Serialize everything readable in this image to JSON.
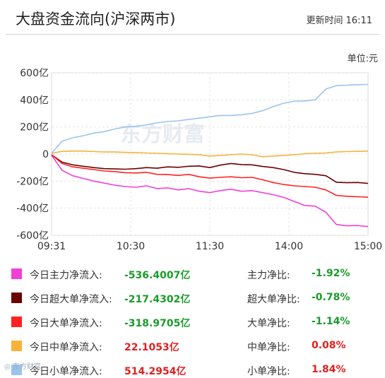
{
  "header": {
    "title": "大盘资金流向(沪深两市)",
    "update_label": "更新时间",
    "update_time": "16:11"
  },
  "unit_label": "单位:元",
  "watermark": "东方财富",
  "corner_mark": "◎ 东方财富",
  "chart_data": {
    "type": "line",
    "x_ticks": [
      "09:31",
      "10:30",
      "11:30",
      "14:00",
      "15:00"
    ],
    "y_ticks": [
      "600亿",
      "400亿",
      "200亿",
      "0",
      "-200亿",
      "-400亿",
      "-600亿"
    ],
    "y_tick_values": [
      600,
      400,
      200,
      0,
      -200,
      -400,
      -600
    ],
    "ylim": [
      -600,
      600
    ],
    "y_unit": "亿",
    "grid": true,
    "series": [
      {
        "name": "今日主力净流入",
        "color": "#f23fd6",
        "values": [
          -10,
          -120,
          -160,
          -180,
          -200,
          -215,
          -230,
          -240,
          -245,
          -235,
          -255,
          -250,
          -265,
          -255,
          -275,
          -285,
          -270,
          -260,
          -275,
          -270,
          -285,
          -300,
          -320,
          -350,
          -380,
          -385,
          -430,
          -520,
          -530,
          -528,
          -536
        ]
      },
      {
        "name": "今日超大单净流入",
        "color": "#6b0000",
        "values": [
          -5,
          -60,
          -80,
          -90,
          -100,
          -108,
          -110,
          -112,
          -108,
          -100,
          -105,
          -95,
          -98,
          -90,
          -88,
          -100,
          -82,
          -70,
          -78,
          -80,
          -92,
          -100,
          -115,
          -135,
          -145,
          -150,
          -160,
          -208,
          -212,
          -210,
          -217
        ]
      },
      {
        "name": "今日大单净流入",
        "color": "#ff2222",
        "values": [
          -5,
          -70,
          -95,
          -105,
          -115,
          -125,
          -130,
          -138,
          -140,
          -135,
          -150,
          -152,
          -158,
          -150,
          -168,
          -178,
          -172,
          -168,
          -175,
          -172,
          -190,
          -210,
          -225,
          -235,
          -240,
          -245,
          -265,
          -305,
          -312,
          -315,
          -319
        ]
      },
      {
        "name": "今日中单净流入",
        "color": "#f7b23a",
        "values": [
          5,
          20,
          22,
          22,
          18,
          15,
          15,
          12,
          10,
          8,
          5,
          2,
          0,
          -2,
          -5,
          -15,
          -10,
          -5,
          0,
          -5,
          -20,
          -15,
          -10,
          -5,
          2,
          5,
          8,
          15,
          18,
          20,
          22
        ]
      },
      {
        "name": "今日小单净流入",
        "color": "#9ac4ec",
        "values": [
          5,
          95,
          120,
          135,
          155,
          165,
          185,
          200,
          205,
          215,
          230,
          240,
          245,
          255,
          265,
          275,
          285,
          285,
          290,
          300,
          320,
          350,
          375,
          390,
          392,
          400,
          480,
          505,
          508,
          512,
          514
        ]
      }
    ]
  },
  "legend": [
    {
      "label": "今日主力净流入:",
      "value": "-536.4007亿",
      "color": "#f23fd6",
      "ratio_label": "主力净比:",
      "ratio": "-1.92%",
      "sign": "neg"
    },
    {
      "label": "今日超大单净流入:",
      "value": "-217.4302亿",
      "color": "#6b0000",
      "ratio_label": "超大单净比:",
      "ratio": "-0.78%",
      "sign": "neg"
    },
    {
      "label": "今日大单净流入:",
      "value": "-318.9705亿",
      "color": "#ff2222",
      "ratio_label": "大单净比:",
      "ratio": "-1.14%",
      "sign": "neg"
    },
    {
      "label": "今日中单净流入:",
      "value": "22.1053亿",
      "color": "#f7b23a",
      "ratio_label": "中单净比:",
      "ratio": "0.08%",
      "sign": "pos"
    },
    {
      "label": "今日小单净流入:",
      "value": "514.2954亿",
      "color": "#9ac4ec",
      "ratio_label": "小单净比:",
      "ratio": "1.84%",
      "sign": "pos"
    }
  ]
}
